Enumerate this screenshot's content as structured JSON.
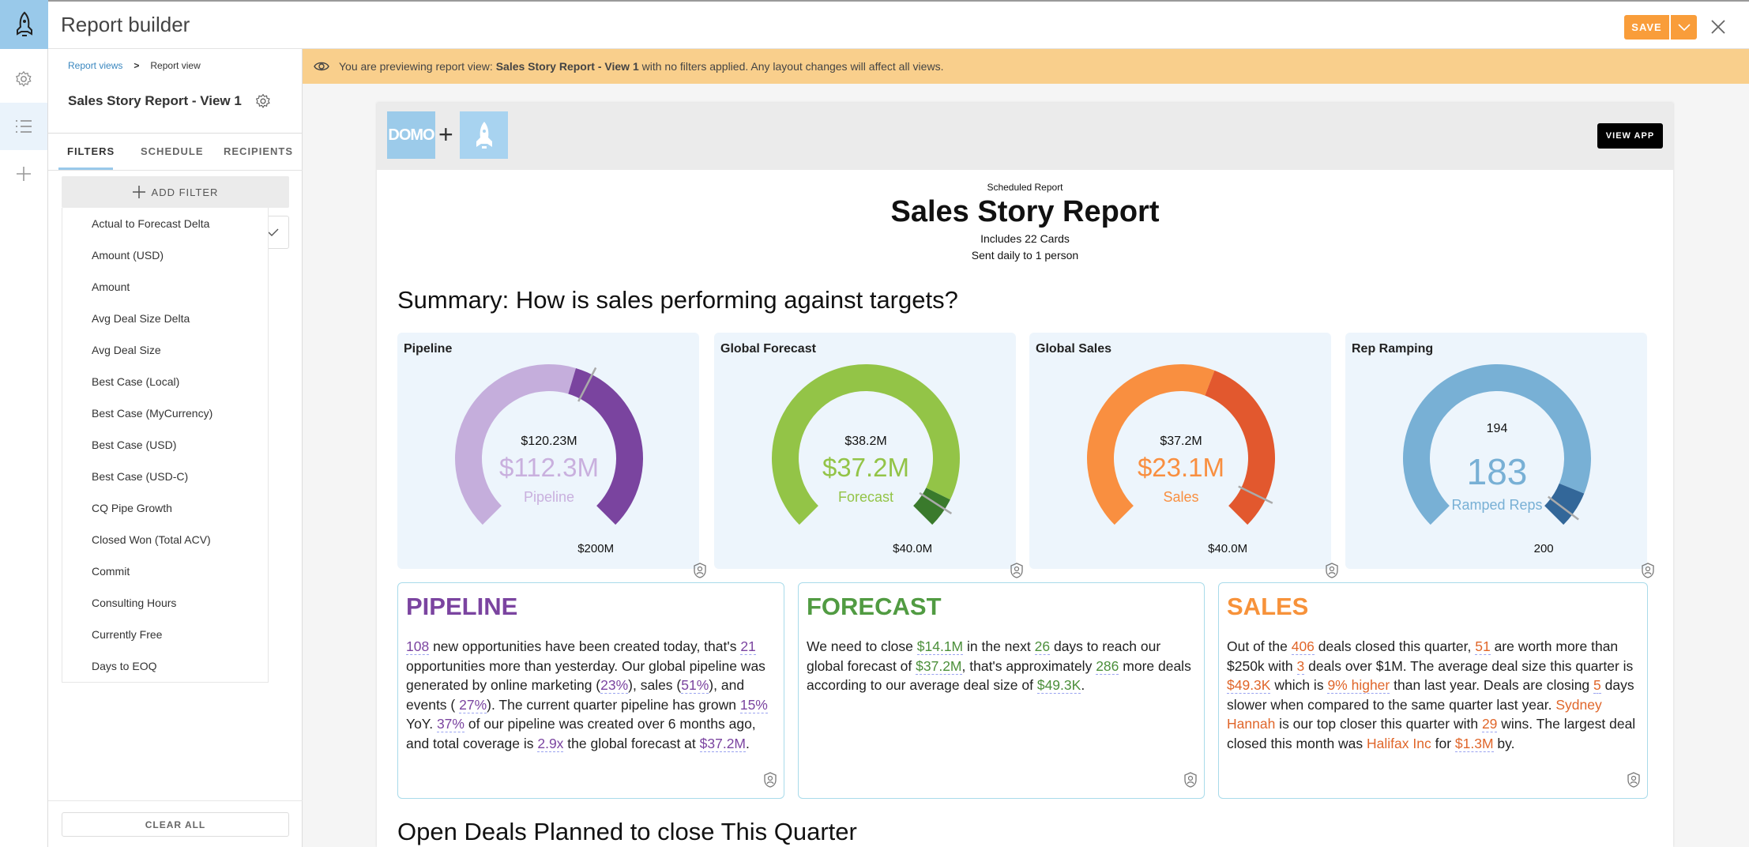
{
  "header": {
    "title": "Report builder",
    "save_label": "SAVE"
  },
  "sidebar": {
    "breadcrumb": {
      "parent": "Report views",
      "current": "Report view"
    },
    "view_title": "Sales Story Report - View 1",
    "tabs": [
      "FILTERS",
      "SCHEDULE",
      "RECIPIENTS"
    ],
    "active_tab": "FILTERS",
    "add_filter_label": "ADD FILTER",
    "filter_options": [
      "Actual to Forecast Delta",
      "Amount (USD)",
      "Amount",
      "Avg Deal Size Delta",
      "Avg Deal Size",
      "Best Case (Local)",
      "Best Case (MyCurrency)",
      "Best Case (USD)",
      "Best Case (USD-C)",
      "CQ Pipe Growth",
      "Closed Won (Total ACV)",
      "Commit",
      "Consulting Hours",
      "Currently Free",
      "Days to EOQ"
    ],
    "clear_all_label": "CLEAR ALL"
  },
  "banner": {
    "prefix": "You are previewing report view: ",
    "view_name": "Sales Story Report - View 1",
    "suffix": " with no filters applied. Any layout changes will affect all views."
  },
  "report": {
    "logo_text": "DOMO",
    "plus": "+",
    "view_app_label": "VIEW APP",
    "kicker": "Scheduled Report",
    "title": "Sales Story Report",
    "cards_count": "Includes 22 Cards",
    "schedule": "Sent daily to 1 person",
    "summary_heading": "Summary: How is sales performing against targets?",
    "open_deals_heading": "Open Deals Planned to close This Quarter"
  },
  "gauges": [
    {
      "title": "Pipeline",
      "value": 112.3,
      "max": 200,
      "target": 120.23,
      "value_label": "$112.3M",
      "target_label": "$120.23M",
      "max_label": "$200M",
      "caption": "Pipeline",
      "light": "#c5aedc",
      "dark": "#7a449f",
      "text_color": "#c9b0de"
    },
    {
      "title": "Global Forecast",
      "value": 37.2,
      "max": 40,
      "target": 38.2,
      "value_label": "$37.2M",
      "target_label": "$38.2M",
      "max_label": "$40.0M",
      "caption": "Forecast",
      "light": "#93c447",
      "dark": "#3a7a2c",
      "text_color": "#93c447"
    },
    {
      "title": "Global Sales",
      "value": 23.1,
      "max": 40,
      "target": 37.2,
      "value_label": "$23.1M",
      "target_label": "$37.2M",
      "max_label": "$40.0M",
      "caption": "Sales",
      "light": "#f98f40",
      "dark": "#e2582e",
      "text_color": "#f98f40"
    },
    {
      "title": "Rep Ramping",
      "value": 183,
      "max": 200,
      "target": 194,
      "value_label": "183",
      "target_label": "194",
      "max_label": "200",
      "caption": "Ramped Reps",
      "light": "#78b0d5",
      "dark": "#336799",
      "text_color": "#78b0d5"
    }
  ],
  "story_cards": [
    {
      "heading": "PIPELINE",
      "heading_color": "#7b44a0",
      "hl_color": "#7b44a0",
      "segments": [
        {
          "t": "108",
          "hl": true
        },
        {
          "t": " new opportunities have been created today, that's "
        },
        {
          "t": "21",
          "hl": true
        },
        {
          "t": " opportunities more than yesterday. Our global pipeline was generated by online marketing ("
        },
        {
          "t": "23%",
          "hl": true
        },
        {
          "t": "), sales ("
        },
        {
          "t": "51%",
          "hl": true
        },
        {
          "t": "), and events ( "
        },
        {
          "t": "27%",
          "hl": true
        },
        {
          "t": "). The current quarter pipeline has grown "
        },
        {
          "t": "15%",
          "hl": true
        },
        {
          "t": " YoY. "
        },
        {
          "t": "37%",
          "hl": true
        },
        {
          "t": " of our pipeline was created over 6 months ago, and total coverage is "
        },
        {
          "t": "2.9x",
          "hl": true
        },
        {
          "t": " the global forecast at "
        },
        {
          "t": "$37.2M",
          "hl": true
        },
        {
          "t": "."
        }
      ]
    },
    {
      "heading": "FORECAST",
      "heading_color": "#519b42",
      "hl_color": "#4b8f3a",
      "segments": [
        {
          "t": "We need to close "
        },
        {
          "t": "$14.1M",
          "hl": true
        },
        {
          "t": " in the next "
        },
        {
          "t": "26",
          "hl": true
        },
        {
          "t": " days to reach our global forecast of "
        },
        {
          "t": "$37.2M",
          "hl": true
        },
        {
          "t": ", that's approximately "
        },
        {
          "t": "286",
          "hl": true
        },
        {
          "t": " more deals according to our average deal size of "
        },
        {
          "t": "$49.3K",
          "hl": true
        },
        {
          "t": "."
        }
      ]
    },
    {
      "heading": "SALES",
      "heading_color": "#f7923a",
      "hl_color": "#e0662a",
      "segments": [
        {
          "t": "Out of the "
        },
        {
          "t": "406",
          "hl": true
        },
        {
          "t": " deals closed this quarter, "
        },
        {
          "t": "51",
          "hl": true
        },
        {
          "t": " are worth more than $250k with "
        },
        {
          "t": "3",
          "hl": true
        },
        {
          "t": " deals over $1M. The average deal size this quarter is "
        },
        {
          "t": "$49.3K",
          "hl": true
        },
        {
          "t": " which is "
        },
        {
          "t": "9% higher",
          "hl": true
        },
        {
          "t": " than last year. Deals are closing "
        },
        {
          "t": "5",
          "hl": true
        },
        {
          "t": " days slower when compared to the same quarter last year. "
        },
        {
          "t": "Sydney Hannah",
          "hl": "name"
        },
        {
          "t": " is our top closer this quarter with "
        },
        {
          "t": "29",
          "hl": true
        },
        {
          "t": " wins. The largest deal closed this month was "
        },
        {
          "t": "Halifax Inc",
          "hl": "name"
        },
        {
          "t": " for "
        },
        {
          "t": "$1.3M",
          "hl": true
        },
        {
          "t": " by."
        }
      ]
    }
  ]
}
